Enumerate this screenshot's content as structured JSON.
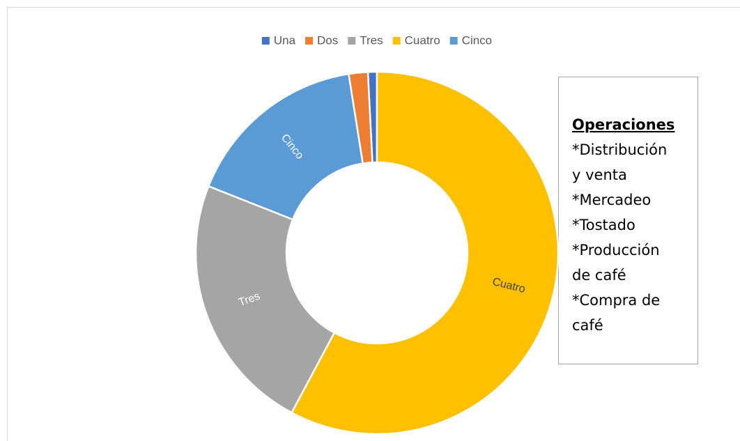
{
  "chart_data": {
    "type": "donut",
    "categories": [
      "Una",
      "Dos",
      "Tres",
      "Cuatro",
      "Cinco"
    ],
    "values": [
      0.8,
      1.7,
      23.2,
      57.8,
      16.5
    ],
    "colors": [
      "#4472c4",
      "#ed7d31",
      "#a5a5a5",
      "#ffc000",
      "#5b9bd5"
    ],
    "data_labels": [
      null,
      null,
      "Tres",
      "Cuatro",
      "Cinco"
    ],
    "legend": "top"
  },
  "text_box": {
    "title": "Operaciones",
    "lines": [
      "*Distribución",
      "y venta",
      "*Mercadeo",
      "*Tostado",
      "*Producción",
      "de café",
      "*Compra de",
      "café"
    ]
  }
}
